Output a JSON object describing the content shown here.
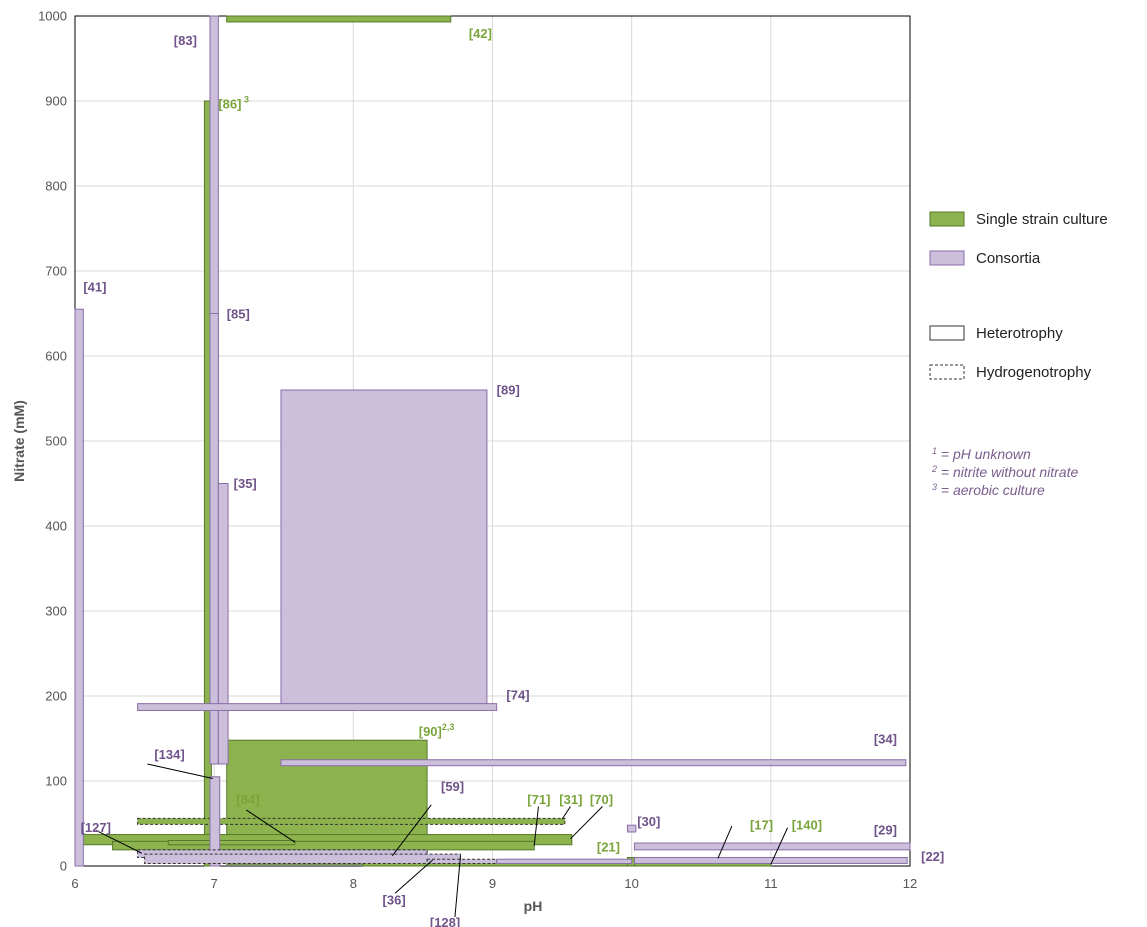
{
  "chart_data": {
    "type": "range-boxes",
    "xlabel": "pH",
    "ylabel": "Nitrate (mM)",
    "xlim": [
      6,
      12
    ],
    "ylim": [
      0,
      1000
    ],
    "xticks": [
      "6",
      "7",
      "8",
      "9",
      "10",
      "11",
      "12"
    ],
    "yticks": [
      "0",
      "100",
      "200",
      "300",
      "400",
      "500",
      "600",
      "700",
      "800",
      "900",
      "1000"
    ],
    "grid": true,
    "colors": {
      "single": "#8cb34d",
      "single_edge": "#557a2b",
      "consortia": "#cbbfdb",
      "consortia_edge": "#8a6da8",
      "label_single": "#7aa53c",
      "label_consortia": "#6f5389",
      "grid": "#d9d9d9"
    },
    "legend": {
      "placement": "right",
      "items": [
        {
          "label": "Single strain culture",
          "kind": "single"
        },
        {
          "label": "Consortia",
          "kind": "consortia"
        },
        {
          "label": "Heterotrophy",
          "kind": "solid"
        },
        {
          "label": "Hydrogenotrophy",
          "kind": "dashed"
        }
      ]
    },
    "notes": [
      {
        "sup": "1",
        "text": " = pH unknown"
      },
      {
        "sup": "2",
        "text": " = nitrite without nitrate"
      },
      {
        "sup": "3",
        "text": " = aerobic culture"
      }
    ],
    "boxes": [
      {
        "kind": "single",
        "x0": 7.09,
        "x1": 8.7,
        "y0": 993,
        "y1": 1000,
        "dashed": false
      },
      {
        "kind": "single",
        "x0": 6.93,
        "x1": 6.98,
        "y0": 0,
        "y1": 900,
        "dashed": false
      },
      {
        "kind": "consortia",
        "x0": 7.48,
        "x1": 8.96,
        "y0": 188,
        "y1": 560,
        "dashed": false
      },
      {
        "kind": "single",
        "x0": 7.09,
        "x1": 8.53,
        "y0": 2,
        "y1": 148,
        "dashed": false
      },
      {
        "kind": "single",
        "x0": 6.0,
        "x1": 9.57,
        "y0": 25,
        "y1": 37,
        "dashed": false
      },
      {
        "kind": "single",
        "x0": 6.27,
        "x1": 9.3,
        "y0": 19,
        "y1": 29,
        "dashed": false
      },
      {
        "kind": "single",
        "x0": 6.67,
        "x1": 7.58,
        "y0": 25,
        "y1": 30,
        "dashed": false
      },
      {
        "kind": "single",
        "x0": 6.45,
        "x1": 9.52,
        "y0": 49,
        "y1": 56,
        "dashed": true
      },
      {
        "kind": "single",
        "x0": 8.07,
        "x1": 11.0,
        "y0": 0,
        "y1": 4,
        "dashed": false
      },
      {
        "kind": "single",
        "x0": 9.97,
        "x1": 10.02,
        "y0": 0,
        "y1": 10,
        "dashed": false
      },
      {
        "kind": "consortia",
        "x0": 6.0,
        "x1": 6.06,
        "y0": 0,
        "y1": 655,
        "dashed": false
      },
      {
        "kind": "consortia",
        "x0": 6.97,
        "x1": 7.03,
        "y0": 120,
        "y1": 1000,
        "dashed": false
      },
      {
        "kind": "consortia",
        "x0": 6.97,
        "x1": 7.03,
        "y0": 120,
        "y1": 650,
        "dashed": false
      },
      {
        "kind": "consortia",
        "x0": 7.03,
        "x1": 7.1,
        "y0": 120,
        "y1": 450,
        "dashed": false
      },
      {
        "kind": "consortia",
        "x0": 6.45,
        "x1": 9.03,
        "y0": 183,
        "y1": 191,
        "dashed": false
      },
      {
        "kind": "consortia",
        "x0": 7.48,
        "x1": 11.97,
        "y0": 118,
        "y1": 125,
        "dashed": false
      },
      {
        "kind": "consortia",
        "x0": 6.97,
        "x1": 7.04,
        "y0": 0,
        "y1": 105,
        "dashed": false
      },
      {
        "kind": "consortia",
        "x0": 6.45,
        "x1": 8.53,
        "y0": 10,
        "y1": 19,
        "dashed": true
      },
      {
        "kind": "consortia",
        "x0": 6.5,
        "x1": 8.77,
        "y0": 3,
        "y1": 14,
        "dashed": true
      },
      {
        "kind": "consortia",
        "x0": 8.53,
        "x1": 9.03,
        "y0": 3,
        "y1": 8,
        "dashed": true
      },
      {
        "kind": "consortia",
        "x0": 9.03,
        "x1": 10.0,
        "y0": 3,
        "y1": 8,
        "dashed": false
      },
      {
        "kind": "consortia",
        "x0": 9.97,
        "x1": 10.03,
        "y0": 40,
        "y1": 48,
        "dashed": false
      },
      {
        "kind": "consortia",
        "x0": 10.02,
        "x1": 12.0,
        "y0": 19,
        "y1": 27,
        "dashed": false
      },
      {
        "kind": "consortia",
        "x0": 10.02,
        "x1": 11.98,
        "y0": 3,
        "y1": 10,
        "dashed": false
      }
    ],
    "labels": [
      {
        "text": "[42]",
        "sup": "",
        "kind": "single",
        "x": 8.83,
        "y": 974
      },
      {
        "text": "[83]",
        "sup": "",
        "kind": "consortia",
        "x": 6.71,
        "y": 966
      },
      {
        "text": "[86]",
        "sup": " 3",
        "kind": "single",
        "x": 7.03,
        "y": 891
      },
      {
        "text": "[41]",
        "sup": "",
        "kind": "consortia",
        "x": 6.06,
        "y": 676
      },
      {
        "text": "[85]",
        "sup": "",
        "kind": "consortia",
        "x": 7.09,
        "y": 644
      },
      {
        "text": "[89]",
        "sup": "",
        "kind": "consortia",
        "x": 9.03,
        "y": 555
      },
      {
        "text": "[35]",
        "sup": "",
        "kind": "consortia",
        "x": 7.14,
        "y": 445
      },
      {
        "text": "[74]",
        "sup": "",
        "kind": "consortia",
        "x": 9.1,
        "y": 196
      },
      {
        "text": "[90]",
        "sup": "2,3",
        "kind": "single",
        "x": 8.47,
        "y": 153
      },
      {
        "text": "[34]",
        "sup": "",
        "kind": "consortia",
        "x": 11.74,
        "y": 144
      },
      {
        "text": "[134]",
        "sup": "",
        "kind": "consortia",
        "x": 6.57,
        "y": 126
      },
      {
        "text": "[84]",
        "sup": "",
        "kind": "single",
        "x": 7.16,
        "y": 73
      },
      {
        "text": "[127]",
        "sup": "",
        "kind": "consortia",
        "x": 6.04,
        "y": 40
      },
      {
        "text": "[59]",
        "sup": "",
        "kind": "consortia",
        "x": 8.63,
        "y": 88
      },
      {
        "text": "[71]",
        "sup": "",
        "kind": "single",
        "x": 9.25,
        "y": 73
      },
      {
        "text": "[31]",
        "sup": "",
        "kind": "single",
        "x": 9.48,
        "y": 73
      },
      {
        "text": "[70]",
        "sup": "",
        "kind": "single",
        "x": 9.7,
        "y": 73
      },
      {
        "text": "[30]",
        "sup": "",
        "kind": "consortia",
        "x": 10.04,
        "y": 47
      },
      {
        "text": "[17]",
        "sup": "",
        "kind": "single",
        "x": 10.85,
        "y": 43
      },
      {
        "text": "[140]",
        "sup": "",
        "kind": "single",
        "x": 11.15,
        "y": 43
      },
      {
        "text": "[21]",
        "sup": "",
        "kind": "single",
        "x": 9.75,
        "y": 17
      },
      {
        "text": "[29]",
        "sup": "",
        "kind": "consortia",
        "x": 11.74,
        "y": 37
      },
      {
        "text": "[22]",
        "sup": "",
        "kind": "consortia",
        "x": 12.08,
        "y": 6
      },
      {
        "text": "[36]",
        "sup": "",
        "kind": "consortia",
        "x": 8.21,
        "y": -45
      },
      {
        "text": "[128]",
        "sup": "",
        "kind": "consortia",
        "x": 8.55,
        "y": -72
      }
    ],
    "leaders": [
      {
        "x1": 6.52,
        "y1": 120,
        "x2": 6.99,
        "y2": 103
      },
      {
        "x1": 6.15,
        "y1": 42,
        "x2": 6.48,
        "y2": 15
      },
      {
        "x1": 7.23,
        "y1": 66,
        "x2": 7.58,
        "y2": 28
      },
      {
        "x1": 8.56,
        "y1": 72,
        "x2": 8.28,
        "y2": 12
      },
      {
        "x1": 9.33,
        "y1": 70,
        "x2": 9.3,
        "y2": 24
      },
      {
        "x1": 9.56,
        "y1": 70,
        "x2": 9.5,
        "y2": 55
      },
      {
        "x1": 9.79,
        "y1": 70,
        "x2": 9.56,
        "y2": 32
      },
      {
        "x1": 8.3,
        "y1": -32,
        "x2": 8.57,
        "y2": 7
      },
      {
        "x1": 8.73,
        "y1": -60,
        "x2": 8.77,
        "y2": 12
      },
      {
        "x1": 10.72,
        "y1": 47,
        "x2": 10.62,
        "y2": 9
      },
      {
        "x1": 11.12,
        "y1": 45,
        "x2": 11.0,
        "y2": 2
      }
    ]
  }
}
